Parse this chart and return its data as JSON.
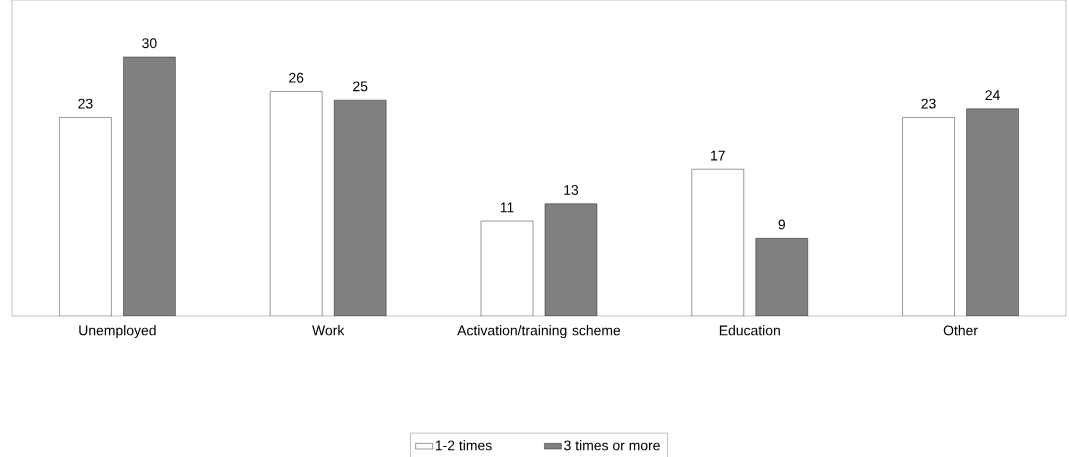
{
  "chart_data": {
    "type": "bar",
    "categories": [
      "Unemployed",
      "Work",
      "Activation/training scheme",
      "Education",
      "Other"
    ],
    "series": [
      {
        "name": "1-2 times",
        "color": "#ffffff",
        "values": [
          23,
          26,
          11,
          17,
          23
        ]
      },
      {
        "name": "3 times or more",
        "color": "#808080",
        "values": [
          30,
          25,
          13,
          9,
          24
        ]
      }
    ],
    "data_labels": true,
    "grid": false,
    "legend": "bottom"
  }
}
